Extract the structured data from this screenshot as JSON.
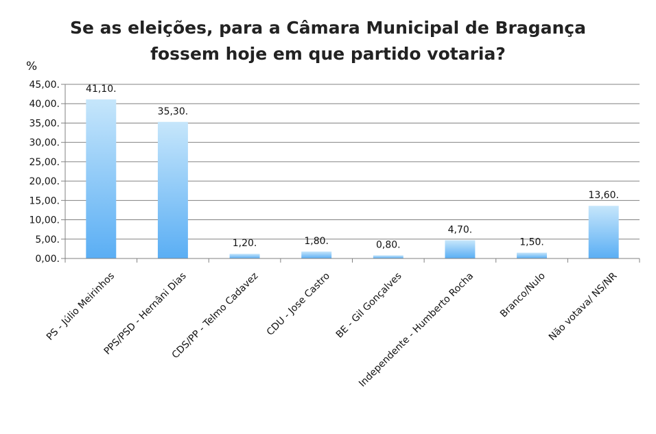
{
  "chart_data": {
    "type": "bar",
    "title_lines": [
      "Se as eleições, para a Câmara Municipal de Bragança",
      "fossem hoje em que partido votaria?"
    ],
    "ylabel": "%",
    "xlabel": "",
    "ylim": [
      0,
      45
    ],
    "ytick_step": 5,
    "ytick_labels": [
      "0,00.",
      "5,00.",
      "10,00.",
      "15,00.",
      "20,00.",
      "25,00.",
      "30,00.",
      "35,00.",
      "40,00.",
      "45,00."
    ],
    "grid": true,
    "categories": [
      "PS - Júlio Meirinhos",
      "PPS/PSD - Hernâni Dias",
      "CDS/PP - Telmo Cadavez",
      "CDU - Jose Castro",
      "BE - Gil Gonçalves",
      "Independente - Humberto Rocha",
      "Branco/Nulo",
      "Não votava/ NS/NR"
    ],
    "values": [
      41.1,
      35.3,
      1.2,
      1.8,
      0.8,
      4.7,
      1.5,
      13.6
    ],
    "data_labels": [
      "41,10.",
      "35,30.",
      "1,20.",
      "1,80.",
      "0,80.",
      "4,70.",
      "1,50.",
      "13,60."
    ],
    "bar_color_top": "#c6e6fb",
    "bar_color_bottom": "#5aaef4",
    "grid_color": "#808080"
  }
}
